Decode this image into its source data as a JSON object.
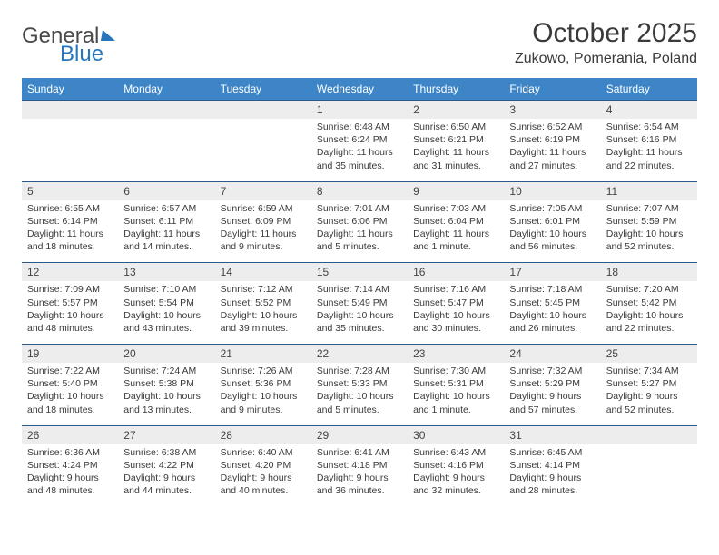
{
  "logo": {
    "part1": "General",
    "part2": "Blue"
  },
  "title": "October 2025",
  "location": "Zukowo, Pomerania, Poland",
  "dayHeaders": [
    "Sunday",
    "Monday",
    "Tuesday",
    "Wednesday",
    "Thursday",
    "Friday",
    "Saturday"
  ],
  "colors": {
    "headerBg": "#3d85c6",
    "headerText": "#ffffff",
    "dayNumBg": "#ededed",
    "ruleLine": "#2a5a8a",
    "bodyText": "#3a3a3a",
    "accent": "#2576bc",
    "pageBg": "#ffffff"
  },
  "typography": {
    "monthTitleSize": 30,
    "locationSize": 16,
    "dayHeaderSize": 12,
    "dayNumSize": 12,
    "cellTextSize": 10.5,
    "logoSize": 24
  },
  "weeks": [
    [
      null,
      null,
      null,
      {
        "n": "1",
        "sunrise": "Sunrise: 6:48 AM",
        "sunset": "Sunset: 6:24 PM",
        "daylight": "Daylight: 11 hours and 35 minutes."
      },
      {
        "n": "2",
        "sunrise": "Sunrise: 6:50 AM",
        "sunset": "Sunset: 6:21 PM",
        "daylight": "Daylight: 11 hours and 31 minutes."
      },
      {
        "n": "3",
        "sunrise": "Sunrise: 6:52 AM",
        "sunset": "Sunset: 6:19 PM",
        "daylight": "Daylight: 11 hours and 27 minutes."
      },
      {
        "n": "4",
        "sunrise": "Sunrise: 6:54 AM",
        "sunset": "Sunset: 6:16 PM",
        "daylight": "Daylight: 11 hours and 22 minutes."
      }
    ],
    [
      {
        "n": "5",
        "sunrise": "Sunrise: 6:55 AM",
        "sunset": "Sunset: 6:14 PM",
        "daylight": "Daylight: 11 hours and 18 minutes."
      },
      {
        "n": "6",
        "sunrise": "Sunrise: 6:57 AM",
        "sunset": "Sunset: 6:11 PM",
        "daylight": "Daylight: 11 hours and 14 minutes."
      },
      {
        "n": "7",
        "sunrise": "Sunrise: 6:59 AM",
        "sunset": "Sunset: 6:09 PM",
        "daylight": "Daylight: 11 hours and 9 minutes."
      },
      {
        "n": "8",
        "sunrise": "Sunrise: 7:01 AM",
        "sunset": "Sunset: 6:06 PM",
        "daylight": "Daylight: 11 hours and 5 minutes."
      },
      {
        "n": "9",
        "sunrise": "Sunrise: 7:03 AM",
        "sunset": "Sunset: 6:04 PM",
        "daylight": "Daylight: 11 hours and 1 minute."
      },
      {
        "n": "10",
        "sunrise": "Sunrise: 7:05 AM",
        "sunset": "Sunset: 6:01 PM",
        "daylight": "Daylight: 10 hours and 56 minutes."
      },
      {
        "n": "11",
        "sunrise": "Sunrise: 7:07 AM",
        "sunset": "Sunset: 5:59 PM",
        "daylight": "Daylight: 10 hours and 52 minutes."
      }
    ],
    [
      {
        "n": "12",
        "sunrise": "Sunrise: 7:09 AM",
        "sunset": "Sunset: 5:57 PM",
        "daylight": "Daylight: 10 hours and 48 minutes."
      },
      {
        "n": "13",
        "sunrise": "Sunrise: 7:10 AM",
        "sunset": "Sunset: 5:54 PM",
        "daylight": "Daylight: 10 hours and 43 minutes."
      },
      {
        "n": "14",
        "sunrise": "Sunrise: 7:12 AM",
        "sunset": "Sunset: 5:52 PM",
        "daylight": "Daylight: 10 hours and 39 minutes."
      },
      {
        "n": "15",
        "sunrise": "Sunrise: 7:14 AM",
        "sunset": "Sunset: 5:49 PM",
        "daylight": "Daylight: 10 hours and 35 minutes."
      },
      {
        "n": "16",
        "sunrise": "Sunrise: 7:16 AM",
        "sunset": "Sunset: 5:47 PM",
        "daylight": "Daylight: 10 hours and 30 minutes."
      },
      {
        "n": "17",
        "sunrise": "Sunrise: 7:18 AM",
        "sunset": "Sunset: 5:45 PM",
        "daylight": "Daylight: 10 hours and 26 minutes."
      },
      {
        "n": "18",
        "sunrise": "Sunrise: 7:20 AM",
        "sunset": "Sunset: 5:42 PM",
        "daylight": "Daylight: 10 hours and 22 minutes."
      }
    ],
    [
      {
        "n": "19",
        "sunrise": "Sunrise: 7:22 AM",
        "sunset": "Sunset: 5:40 PM",
        "daylight": "Daylight: 10 hours and 18 minutes."
      },
      {
        "n": "20",
        "sunrise": "Sunrise: 7:24 AM",
        "sunset": "Sunset: 5:38 PM",
        "daylight": "Daylight: 10 hours and 13 minutes."
      },
      {
        "n": "21",
        "sunrise": "Sunrise: 7:26 AM",
        "sunset": "Sunset: 5:36 PM",
        "daylight": "Daylight: 10 hours and 9 minutes."
      },
      {
        "n": "22",
        "sunrise": "Sunrise: 7:28 AM",
        "sunset": "Sunset: 5:33 PM",
        "daylight": "Daylight: 10 hours and 5 minutes."
      },
      {
        "n": "23",
        "sunrise": "Sunrise: 7:30 AM",
        "sunset": "Sunset: 5:31 PM",
        "daylight": "Daylight: 10 hours and 1 minute."
      },
      {
        "n": "24",
        "sunrise": "Sunrise: 7:32 AM",
        "sunset": "Sunset: 5:29 PM",
        "daylight": "Daylight: 9 hours and 57 minutes."
      },
      {
        "n": "25",
        "sunrise": "Sunrise: 7:34 AM",
        "sunset": "Sunset: 5:27 PM",
        "daylight": "Daylight: 9 hours and 52 minutes."
      }
    ],
    [
      {
        "n": "26",
        "sunrise": "Sunrise: 6:36 AM",
        "sunset": "Sunset: 4:24 PM",
        "daylight": "Daylight: 9 hours and 48 minutes."
      },
      {
        "n": "27",
        "sunrise": "Sunrise: 6:38 AM",
        "sunset": "Sunset: 4:22 PM",
        "daylight": "Daylight: 9 hours and 44 minutes."
      },
      {
        "n": "28",
        "sunrise": "Sunrise: 6:40 AM",
        "sunset": "Sunset: 4:20 PM",
        "daylight": "Daylight: 9 hours and 40 minutes."
      },
      {
        "n": "29",
        "sunrise": "Sunrise: 6:41 AM",
        "sunset": "Sunset: 4:18 PM",
        "daylight": "Daylight: 9 hours and 36 minutes."
      },
      {
        "n": "30",
        "sunrise": "Sunrise: 6:43 AM",
        "sunset": "Sunset: 4:16 PM",
        "daylight": "Daylight: 9 hours and 32 minutes."
      },
      {
        "n": "31",
        "sunrise": "Sunrise: 6:45 AM",
        "sunset": "Sunset: 4:14 PM",
        "daylight": "Daylight: 9 hours and 28 minutes."
      },
      null
    ]
  ]
}
